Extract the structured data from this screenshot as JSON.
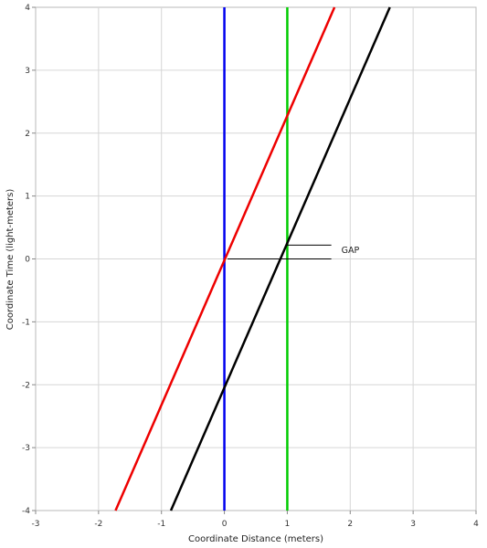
{
  "chart_data": {
    "type": "line",
    "title": "",
    "xlabel": "Coordinate Distance (meters)",
    "ylabel": "Coordinate Time (light-meters)",
    "xlim": [
      -3,
      4
    ],
    "ylim": [
      -4,
      4
    ],
    "grid": true,
    "x_ticks": [
      "-3",
      "-2",
      "-1",
      "0",
      "1",
      "2",
      "3",
      "4"
    ],
    "y_ticks": [
      "-4",
      "-3",
      "-2",
      "-1",
      "0",
      "1",
      "2",
      "3",
      "4"
    ],
    "series": [
      {
        "color": "#0000ee",
        "points": [
          [
            0,
            -4
          ],
          [
            0,
            4
          ]
        ]
      },
      {
        "color": "#00cc00",
        "points": [
          [
            1,
            -4
          ],
          [
            1,
            4
          ]
        ]
      },
      {
        "color": "#ee0000",
        "points": [
          [
            -1.73,
            -4
          ],
          [
            1.75,
            4
          ]
        ]
      },
      {
        "color": "#000000",
        "points": [
          [
            -0.85,
            -4
          ],
          [
            2.63,
            4
          ]
        ]
      }
    ],
    "annotations": [
      {
        "text": "GAP",
        "markers": [
          [
            [
              1,
              0.22
            ],
            [
              1.7,
              0.22
            ]
          ],
          [
            [
              0.05,
              0
            ],
            [
              1.7,
              0
            ]
          ]
        ]
      }
    ]
  }
}
